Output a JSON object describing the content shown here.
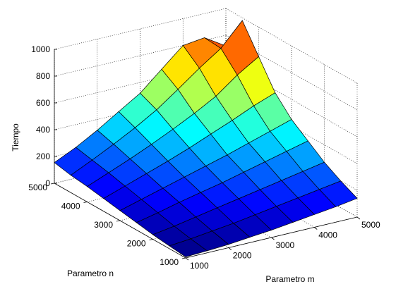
{
  "chart_data": {
    "type": "surface",
    "zlabel": "Tiempo",
    "xlabel": "Parametro m",
    "ylabel": "Parametro n",
    "xlim": [
      1000,
      5000
    ],
    "ylim": [
      1000,
      5000
    ],
    "zlim": [
      0,
      1000
    ],
    "x_ticks": [
      1000,
      2000,
      3000,
      4000,
      5000
    ],
    "y_ticks": [
      1000,
      2000,
      3000,
      4000,
      5000
    ],
    "z_ticks": [
      0,
      200,
      400,
      600,
      800,
      1000
    ],
    "grid": true,
    "colormap": "jet",
    "x": [
      1000,
      1500,
      2000,
      2500,
      3000,
      3500,
      4000,
      4500,
      5000
    ],
    "y": [
      1000,
      1500,
      2000,
      2500,
      3000,
      3500,
      4000,
      4500,
      5000
    ],
    "z": [
      [
        8,
        15,
        25,
        40,
        55,
        75,
        95,
        115,
        140
      ],
      [
        20,
        35,
        55,
        75,
        100,
        125,
        150,
        175,
        200
      ],
      [
        35,
        60,
        90,
        120,
        150,
        180,
        210,
        240,
        270
      ],
      [
        55,
        90,
        130,
        165,
        200,
        240,
        280,
        320,
        360
      ],
      [
        75,
        120,
        165,
        210,
        255,
        300,
        350,
        400,
        450
      ],
      [
        95,
        150,
        205,
        260,
        320,
        385,
        450,
        520,
        580
      ],
      [
        115,
        180,
        245,
        315,
        390,
        470,
        560,
        680,
        780
      ],
      [
        130,
        205,
        285,
        370,
        465,
        580,
        700,
        810,
        980
      ],
      [
        155,
        230,
        320,
        420,
        520,
        660,
        800,
        820,
        720
      ]
    ]
  }
}
